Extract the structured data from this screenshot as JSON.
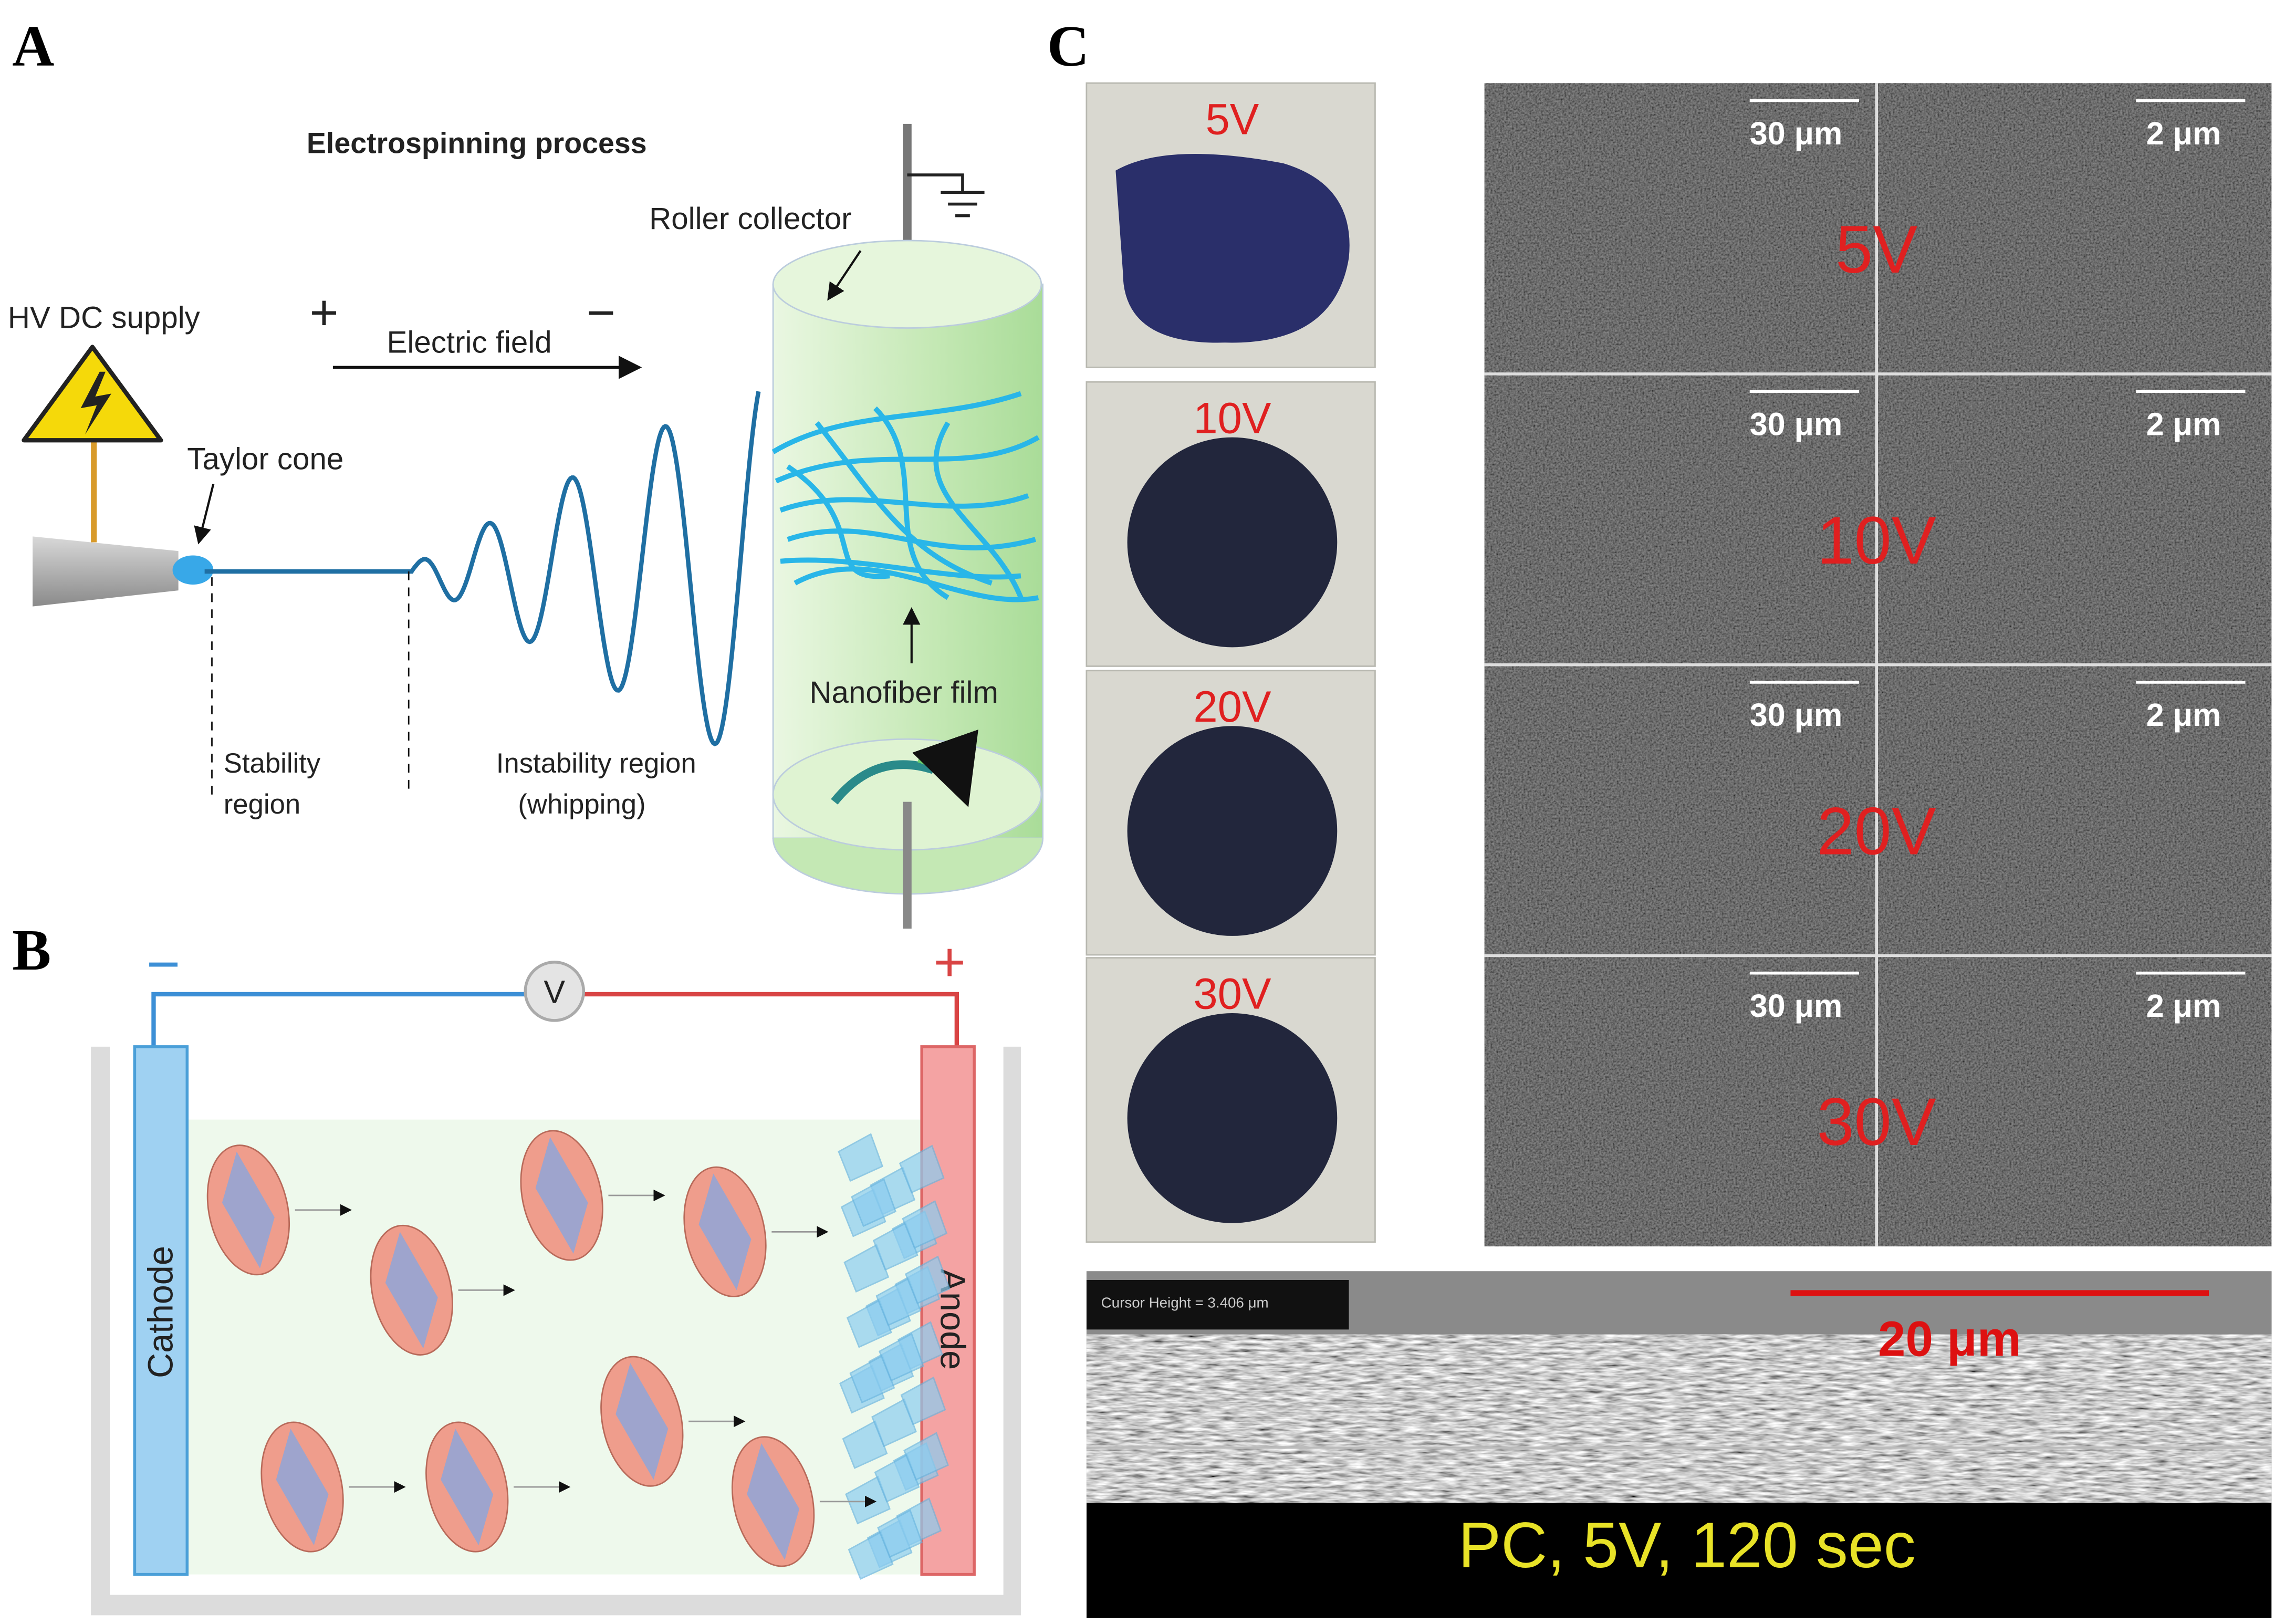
{
  "panel_a": {
    "label": "A",
    "title": "Electrospinning process",
    "hv_supply": "HV DC supply",
    "plus": "+",
    "minus": "−",
    "electric_field": "Electric field",
    "taylor_cone": "Taylor cone",
    "roller_collector": "Roller collector",
    "nanofiber_film": "Nanofiber film",
    "stability_region": [
      "Stability",
      "region"
    ],
    "instability_region": [
      "Instability region",
      "(whipping)"
    ]
  },
  "panel_b": {
    "label": "B",
    "minus": "−",
    "plus": "+",
    "voltmeter": "V",
    "cathode": "Cathode",
    "anode": "Anode"
  },
  "panel_c": {
    "label": "C",
    "photo_labels": [
      "5V",
      "10V",
      "20V",
      "30V"
    ],
    "sem_rows": [
      {
        "scale_left": "30 μm",
        "scale_right": "2 μm",
        "voltage": "5V"
      },
      {
        "scale_left": "30 μm",
        "scale_right": "2 μm",
        "voltage": "10V"
      },
      {
        "scale_left": "30 μm",
        "scale_right": "2 μm",
        "voltage": "20V"
      },
      {
        "scale_left": "30 μm",
        "scale_right": "2 μm",
        "voltage": "30V"
      }
    ],
    "cross_section": {
      "cursor_height": "Cursor Height = 3.406 μm",
      "scale": "20 μm",
      "caption": "PC, 5V, 120 sec"
    }
  }
}
